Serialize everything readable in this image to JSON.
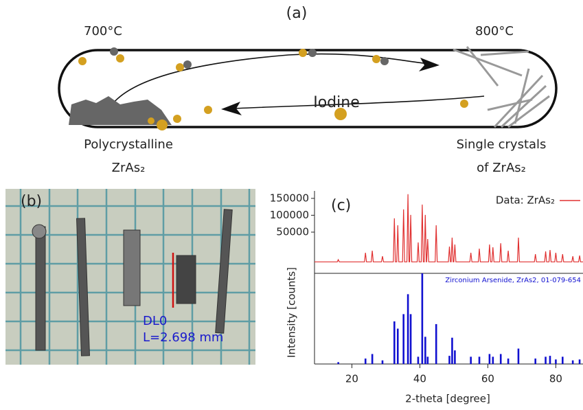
{
  "panel_a": {
    "label": "(a)",
    "temp_left": "700°C",
    "temp_right": "800°C",
    "iodine": "Iodine",
    "left_caption": [
      "Polycrystalline",
      "ZrAs₂"
    ],
    "right_caption": [
      "Single crystals",
      "of ZrAs₂"
    ]
  },
  "panel_b": {
    "label": "(b)",
    "measure_name": "DL0",
    "measure_length": "L=2.698 mm"
  },
  "chart_data": [
    {
      "type": "line",
      "panel_label": "(c)",
      "y_label": "Intensity [counts]",
      "legend": "upper right",
      "x": [
        9,
        15.7,
        16,
        16.3,
        23.7,
        24,
        24.3,
        25.7,
        26,
        26.3,
        28.7,
        29,
        29.3,
        32.2,
        32.5,
        32.8,
        33.2,
        33.5,
        33.8,
        34.9,
        35.2,
        35.5,
        36.2,
        36.5,
        36.8,
        37.0,
        37.3,
        37.6,
        39.2,
        39.5,
        39.8,
        40.4,
        40.7,
        41.0,
        41.3,
        41.6,
        41.9,
        42.0,
        42.3,
        42.6,
        44.5,
        44.8,
        45.1,
        48.4,
        48.7,
        49.0,
        49.2,
        49.5,
        49.8,
        50.0,
        50.3,
        50.6,
        54.7,
        55,
        55.3,
        57.2,
        57.5,
        57.8,
        60.2,
        60.5,
        60.8,
        61.2,
        61.5,
        61.8,
        63.5,
        63.8,
        64.1,
        65.7,
        66,
        66.3,
        68.7,
        69,
        69.3,
        73.7,
        74,
        74.3,
        76.7,
        77,
        77.3,
        78.0,
        78.3,
        78.6,
        79.7,
        80,
        80.3,
        81.7,
        82,
        82.3,
        84.7,
        85,
        85.3,
        86.7,
        87,
        87.3,
        88
      ],
      "series": [
        {
          "name": "Data: ZrAs₂",
          "color": "#e03030",
          "values": [
            -38000,
            -38000,
            -31600,
            -38000,
            -38000,
            -11200,
            -38000,
            -38000,
            -5100,
            -38000,
            -38000,
            -21400,
            -38000,
            -38000,
            90800,
            -38000,
            -38000,
            70400,
            -38000,
            -38000,
            117300,
            -38000,
            -38000,
            162200,
            -38000,
            -38000,
            101000,
            -38000,
            -38000,
            19400,
            -38000,
            -38000,
            131600,
            -38000,
            -38000,
            101000,
            -38000,
            -38000,
            29600,
            -38000,
            -38000,
            70400,
            -38000,
            -38000,
            7100,
            -38000,
            -38000,
            33700,
            -38000,
            -38000,
            13300,
            -38000,
            -38000,
            -11200,
            -38000,
            -38000,
            1000,
            -38000,
            -38000,
            13300,
            -38000,
            -38000,
            5100,
            -38000,
            -38000,
            17300,
            -38000,
            -38000,
            -5100,
            -38000,
            -38000,
            33700,
            -38000,
            -38000,
            -15300,
            -38000,
            -38000,
            -7100,
            -38000,
            -38000,
            -3100,
            -38000,
            -38000,
            -11200,
            -38000,
            -38000,
            -15300,
            -38000,
            -38000,
            -21400,
            -38000,
            -38000,
            -19400,
            -38000,
            -38000
          ]
        }
      ],
      "xlim": [
        9,
        88
      ],
      "ylim": [
        -72000,
        172000
      ],
      "yticks": [
        50000,
        100000,
        150000
      ]
    },
    {
      "type": "bar",
      "annotation": "Zirconium Arsenide, ZrAs2, 01-079-654",
      "x_label": "2-theta [degree]",
      "color": "#1010d0",
      "x": [
        16,
        24,
        26,
        29,
        32.5,
        33.5,
        35.2,
        36.5,
        37.3,
        39.5,
        40.7,
        41.6,
        42.3,
        44.8,
        48.7,
        49.5,
        50.3,
        55,
        57.5,
        60.5,
        61.5,
        63.8,
        66,
        69,
        74,
        77,
        78.3,
        80,
        82,
        85,
        87
      ],
      "values": [
        2,
        6,
        11,
        4,
        47,
        39,
        55,
        77,
        55,
        8,
        100,
        30,
        8,
        44,
        9,
        29,
        15,
        8,
        8,
        11,
        8,
        11,
        6,
        17,
        6,
        8,
        9,
        5,
        8,
        4,
        5
      ],
      "xlim": [
        9,
        88
      ],
      "ylim": [
        0,
        100
      ],
      "xticks": [
        20,
        40,
        60,
        80
      ]
    }
  ]
}
